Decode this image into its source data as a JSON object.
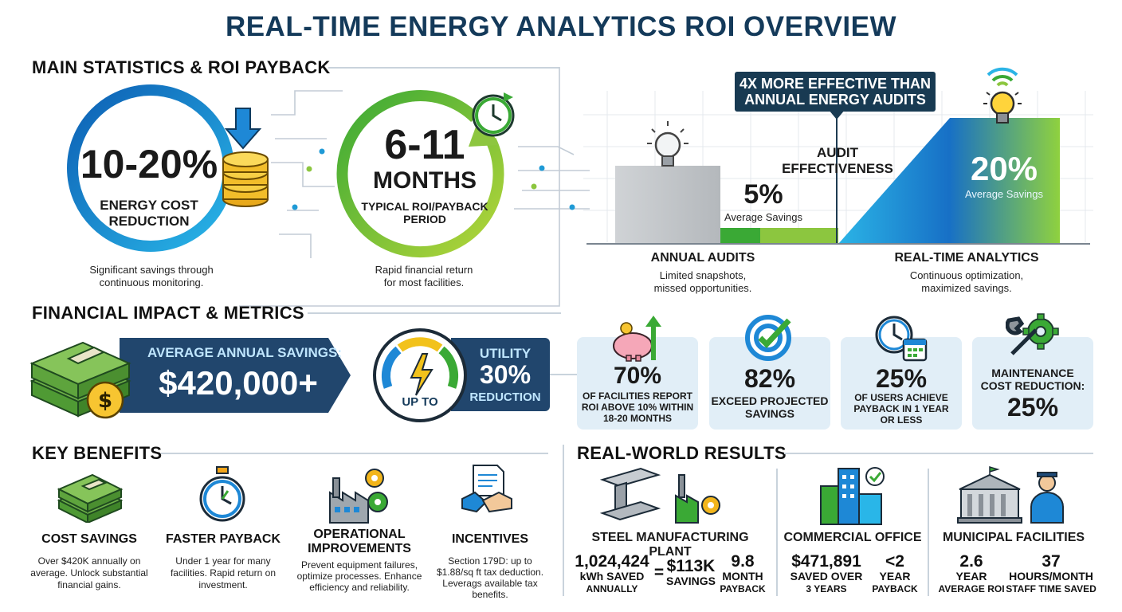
{
  "title": "REAL-TIME ENERGY ANALYTICS ROI OVERVIEW",
  "main_stats": {
    "heading": "MAIN STATISTICS & ROI PAYBACK",
    "stat1": {
      "value": "10-20%",
      "label_line1": "ENERGY COST",
      "label_line2": "REDUCTION",
      "desc_line1": "Significant savings through",
      "desc_line2": "continuous monitoring."
    },
    "stat2": {
      "value_line1": "6-11",
      "value_line2": "MONTHS",
      "label_line1": "TYPICAL ROI/PAYBACK",
      "label_line2": "PERIOD",
      "desc_line1": "Rapid financial return",
      "desc_line2": "for most facilities."
    }
  },
  "comparison": {
    "banner_line1": "4X MORE EFFECTIVE THAN",
    "banner_line2": "ANNUAL ENERGY AUDITS",
    "center_line1": "AUDIT",
    "center_line2": "EFFECTIVENESS",
    "left": {
      "value": "5%",
      "sub": "Average Savings",
      "title": "ANNUAL AUDITS",
      "desc_line1": "Limited snapshots,",
      "desc_line2": "missed opportunities.",
      "savings_percent": 5
    },
    "right": {
      "value": "20%",
      "sub": "Average Savings",
      "title": "REAL-TIME ANALYTICS",
      "desc_line1": "Continuous optimization,",
      "desc_line2": "maximized savings.",
      "savings_percent": 20
    }
  },
  "financial": {
    "heading": "FINANCIAL IMPACT & METRICS",
    "savings_label": "AVERAGE ANNUAL SAVINGS:",
    "savings_value": "$420,000+",
    "gauge_label": "UP TO",
    "utility_line1": "UTILITY",
    "utility_value": "30%",
    "utility_line2": "REDUCTION",
    "cards": [
      {
        "icon": "piggy-bank-growth-icon",
        "value": "70%",
        "l1": "OF FACILITIES REPORT",
        "l2": "ROI ABOVE 10% WITHIN",
        "l3": "18-20 MONTHS"
      },
      {
        "icon": "target-check-icon",
        "value": "82%",
        "l1": "EXCEED PROJECTED",
        "l2": "SAVINGS",
        "l3": ""
      },
      {
        "icon": "clock-calendar-icon",
        "value": "25%",
        "l1": "OF USERS ACHIEVE",
        "l2": "PAYBACK IN 1 YEAR",
        "l3": "OR LESS"
      },
      {
        "icon": "wrench-gear-icon",
        "pre1": "MAINTENANCE",
        "pre2": "COST REDUCTION:",
        "value": "25%"
      }
    ]
  },
  "benefits": {
    "heading": "KEY BENEFITS",
    "items": [
      {
        "icon": "cash-stack-icon",
        "title_line1": "COST SAVINGS",
        "title_line2": "",
        "d1": "Over $420K annually on",
        "d2": "average. Unlock substantial",
        "d3": "financial gains.",
        "d4": ""
      },
      {
        "icon": "stopwatch-icon",
        "title_line1": "FASTER PAYBACK",
        "title_line2": "",
        "d1": "Under 1 year for many",
        "d2": "facilities. Rapid return on",
        "d3": "investment.",
        "d4": ""
      },
      {
        "icon": "factory-gears-icon",
        "title_line1": "OPERATIONAL",
        "title_line2": "IMPROVEMENTS",
        "d1": "Prevent equipment failures,",
        "d2": "optimize processes. Enhance",
        "d3": "efficiency and reliability.",
        "d4": ""
      },
      {
        "icon": "handshake-document-icon",
        "title_line1": "INCENTIVES",
        "title_line2": "",
        "d1": "Section 179D: up to",
        "d2": "$1.88/sq ft tax deduction.",
        "d3": "Leverags available tax",
        "d4": "benefits."
      }
    ]
  },
  "results": {
    "heading": "REAL-WORLD RESULTS",
    "steel": {
      "icon": "steel-beam-factory-icon",
      "title": "STEEL MANUFACTURING PLANT",
      "kwh": "1,024,424",
      "kwh_l1": "kWh SAVED",
      "kwh_l2": "ANNUALLY",
      "eq": "=",
      "money": "$113K",
      "money_l": "SAVINGS",
      "months": "9.8",
      "months_l1": "MONTH",
      "months_l2": "PAYBACK"
    },
    "office": {
      "icon": "office-buildings-icon",
      "title": "COMMERCIAL OFFICE",
      "saved": "$471,891",
      "saved_l1": "SAVED OVER",
      "saved_l2": "3 YEARS",
      "years": "<2",
      "years_l1": "YEAR",
      "years_l2": "PAYBACK"
    },
    "municipal": {
      "icon": "city-hall-official-icon",
      "title": "MUNICIPAL FACILITIES",
      "roi": "2.6",
      "roi_l1": "YEAR",
      "roi_l2": "AVERAGE ROI",
      "hours": "37",
      "hours_l1": "HOURS/MONTH",
      "hours_l2": "STAFF TIME SAVED"
    }
  }
}
